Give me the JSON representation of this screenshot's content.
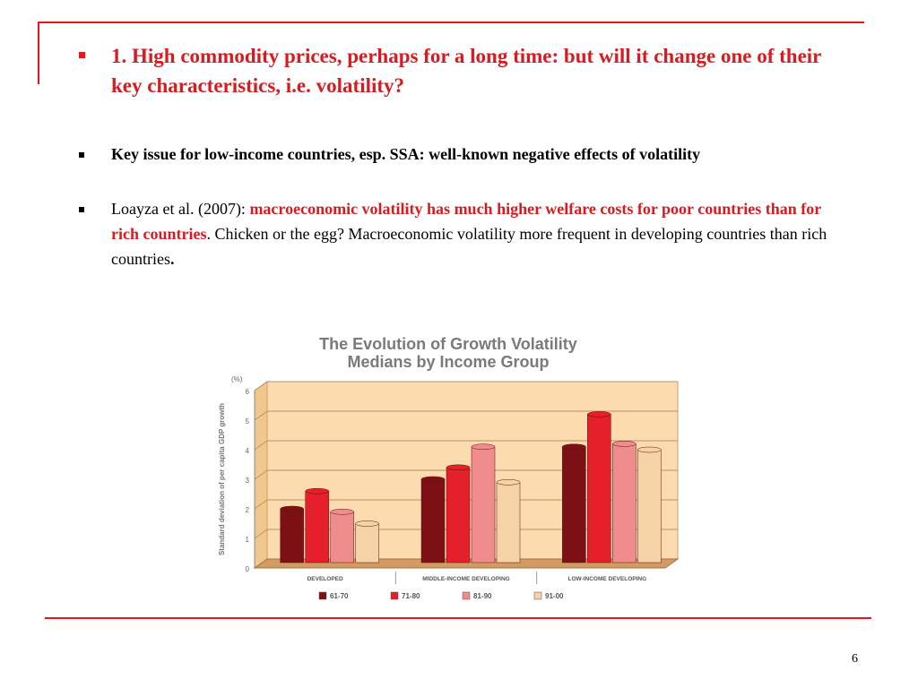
{
  "slide": {
    "bullet1": "1. High commodity prices, perhaps for a long time: but will it change one of their key characteristics, i.e. volatility?",
    "bullet2": "Key issue for low-income countries, esp.  SSA: well-known negative effects of volatility",
    "bullet3_plain1": "Loayza et al. (2007): ",
    "bullet3_red": "macroeconomic volatility has much higher welfare costs for poor countries than for rich countries",
    "bullet3_plain2": ". Chicken or the egg? Macroeconomic volatility more frequent in developing countries than rich countries",
    "bullet3_end": ".",
    "page_number": "6"
  },
  "colors": {
    "accent_red": "#d81b20",
    "plot_background": "#fcdcae",
    "series": [
      "#7d1015",
      "#e5202a",
      "#ef8c8d",
      "#f6d3a6"
    ]
  },
  "chart_data": {
    "type": "bar",
    "title": "The Evolution of Growth Volatility",
    "subtitle": "Medians by Income Group",
    "ylabel": "Standard deviation of per capita GDP growth",
    "yunit": "(%)",
    "ylim": [
      0,
      6
    ],
    "yticks": [
      "0",
      "1",
      "2",
      "3",
      "4",
      "5",
      "6"
    ],
    "categories": [
      "DEVELOPED",
      "MIDDLE-INCOME DEVELOPING",
      "LOW-INCOME DEVELOPING"
    ],
    "series": [
      {
        "name": "61-70",
        "values": [
          2.0,
          3.0,
          4.1
        ]
      },
      {
        "name": "71-80",
        "values": [
          2.6,
          3.4,
          5.2
        ]
      },
      {
        "name": "81-90",
        "values": [
          1.9,
          4.1,
          4.2
        ]
      },
      {
        "name": "91-00",
        "values": [
          1.5,
          2.9,
          4.0
        ]
      }
    ],
    "legend_position": "bottom",
    "grid": true
  }
}
